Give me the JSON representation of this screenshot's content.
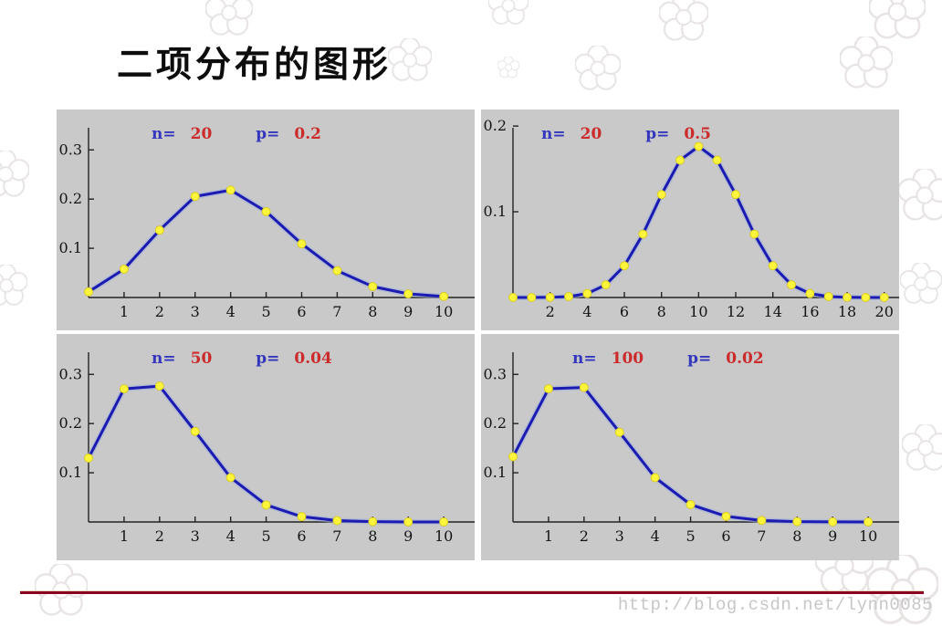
{
  "page": {
    "title": "二项分布的图形",
    "watermark": "http://blog.csdn.net/lynn0085"
  },
  "colors": {
    "panel_bg": "#c9c9c9",
    "series_line": "#1b1bb2",
    "series_halo": "#9fafdf",
    "marker_fill": "#fdf53c",
    "param_label_blue": "#3437bd",
    "param_value_red": "#cc2b2b",
    "axis_black": "#222222",
    "divider_red": "#8e0020",
    "watermark_gray": "#c7c7c7"
  },
  "chart_data": [
    {
      "type": "line",
      "position": "top-left",
      "params": {
        "n_label": "n=",
        "n_value": "20",
        "p_label": "p=",
        "p_value": "0.2"
      },
      "x": [
        0,
        1,
        2,
        3,
        4,
        5,
        6,
        7,
        8,
        9,
        10
      ],
      "values": [
        0.0115,
        0.0576,
        0.1369,
        0.2054,
        0.2182,
        0.1746,
        0.1091,
        0.0546,
        0.0222,
        0.0074,
        0.002
      ],
      "x_ticks": [
        1,
        2,
        3,
        4,
        5,
        6,
        7,
        8,
        9,
        10
      ],
      "y_ticks": [
        0.1,
        0.2,
        0.3
      ],
      "y_tick_labels": [
        "0.1",
        "0.2",
        "0.3"
      ],
      "xlim": [
        0,
        10.87
      ],
      "ylim": [
        0,
        0.345
      ],
      "grid": false,
      "legend": "none"
    },
    {
      "type": "line",
      "position": "top-right",
      "params": {
        "n_label": "n=",
        "n_value": "20",
        "p_label": "p=",
        "p_value": "0.5"
      },
      "x": [
        0,
        1,
        2,
        3,
        4,
        5,
        6,
        7,
        8,
        9,
        10,
        11,
        12,
        13,
        14,
        15,
        16,
        17,
        18,
        19,
        20
      ],
      "values": [
        0.0,
        0.0,
        0.0002,
        0.0011,
        0.0046,
        0.0148,
        0.037,
        0.0739,
        0.1201,
        0.1602,
        0.1762,
        0.1602,
        0.1201,
        0.0739,
        0.037,
        0.0148,
        0.0046,
        0.0011,
        0.0002,
        0.0,
        0.0
      ],
      "x_ticks": [
        2,
        4,
        6,
        8,
        10,
        12,
        14,
        16,
        18,
        20
      ],
      "y_ticks": [
        0.1,
        0.2
      ],
      "y_tick_labels": [
        "0.1",
        "0.2"
      ],
      "xlim": [
        0,
        20.8
      ],
      "ylim": [
        0,
        0.198
      ],
      "grid": false,
      "legend": "none"
    },
    {
      "type": "line",
      "position": "bottom-left",
      "params": {
        "n_label": "n=",
        "n_value": "50",
        "p_label": "p=",
        "p_value": "0.04"
      },
      "x": [
        0,
        1,
        2,
        3,
        4,
        5,
        6,
        7,
        8,
        9,
        10
      ],
      "values": [
        0.1299,
        0.2706,
        0.2762,
        0.1842,
        0.0902,
        0.0346,
        0.0108,
        0.0028,
        0.0006,
        0.0001,
        0.0
      ],
      "x_ticks": [
        1,
        2,
        3,
        4,
        5,
        6,
        7,
        8,
        9,
        10
      ],
      "y_ticks": [
        0.1,
        0.2,
        0.3
      ],
      "y_tick_labels": [
        "0.1",
        "0.2",
        "0.3"
      ],
      "xlim": [
        0,
        10.87
      ],
      "ylim": [
        0,
        0.345
      ],
      "grid": false,
      "legend": "none"
    },
    {
      "type": "line",
      "position": "bottom-right",
      "params": {
        "n_label": "n=",
        "n_value": "100",
        "p_label": "p=",
        "p_value": "0.02"
      },
      "x": [
        0,
        1,
        2,
        3,
        4,
        5,
        6,
        7,
        8,
        9,
        10
      ],
      "values": [
        0.1326,
        0.2707,
        0.2734,
        0.1823,
        0.0902,
        0.0353,
        0.0114,
        0.0031,
        0.0007,
        0.0002,
        0.0
      ],
      "x_ticks": [
        1,
        2,
        3,
        4,
        5,
        6,
        7,
        8,
        9,
        10
      ],
      "y_ticks": [
        0.1,
        0.2,
        0.3
      ],
      "y_tick_labels": [
        "0.1",
        "0.2",
        "0.3"
      ],
      "xlim": [
        0,
        10.87
      ],
      "ylim": [
        0,
        0.345
      ],
      "grid": false,
      "legend": "none"
    }
  ]
}
